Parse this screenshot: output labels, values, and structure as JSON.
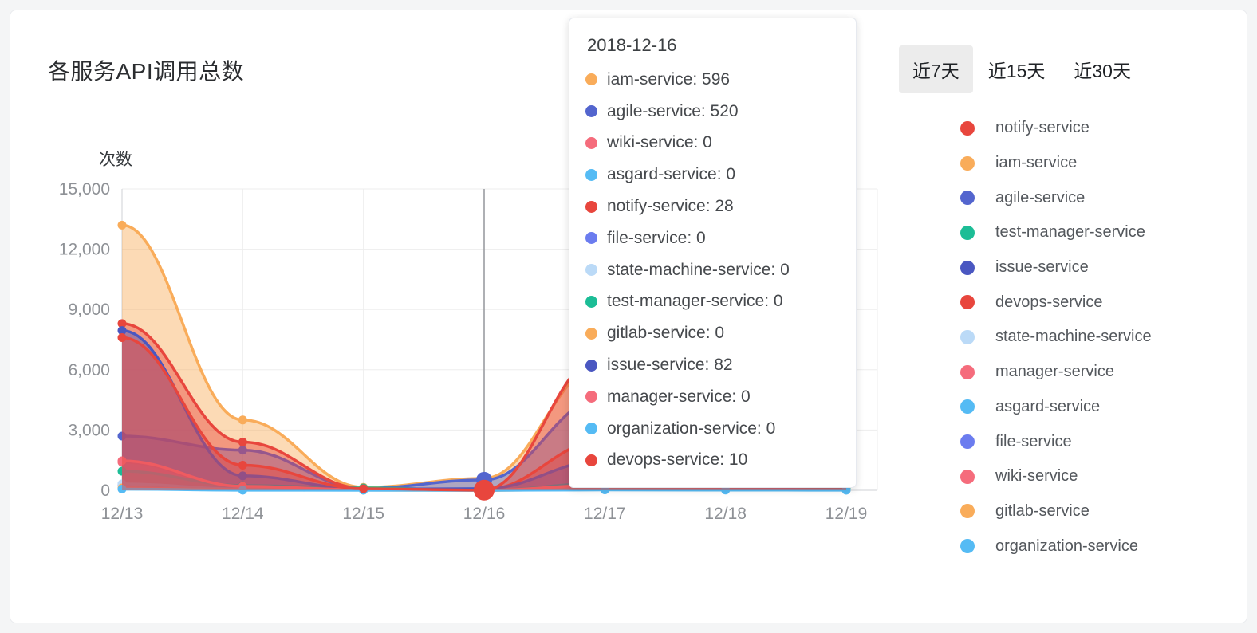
{
  "card": {
    "title": "各服务API调用总数"
  },
  "time_filter": {
    "options": [
      {
        "label": "近7天",
        "selected": true
      },
      {
        "label": "近15天",
        "selected": false
      },
      {
        "label": "近30天",
        "selected": false
      }
    ]
  },
  "legend": {
    "items": [
      {
        "name": "notify-service",
        "color": "#e8463d"
      },
      {
        "name": "iam-service",
        "color": "#f9ac5a"
      },
      {
        "name": "agile-service",
        "color": "#5365ce"
      },
      {
        "name": "test-manager-service",
        "color": "#1cbd96"
      },
      {
        "name": "issue-service",
        "color": "#4a57c1"
      },
      {
        "name": "devops-service",
        "color": "#e8463d"
      },
      {
        "name": "state-machine-service",
        "color": "#bbdaf7"
      },
      {
        "name": "manager-service",
        "color": "#f56c7c"
      },
      {
        "name": "asgard-service",
        "color": "#55bbf4"
      },
      {
        "name": "file-service",
        "color": "#6b7cef"
      },
      {
        "name": "wiki-service",
        "color": "#f56c7c"
      },
      {
        "name": "gitlab-service",
        "color": "#f9ac5a"
      },
      {
        "name": "organization-service",
        "color": "#55bbf4"
      }
    ]
  },
  "tooltip": {
    "date": "2018-12-16",
    "items": [
      {
        "name": "iam-service",
        "value": "596",
        "color": "#f9ac5a"
      },
      {
        "name": "agile-service",
        "value": "520",
        "color": "#5365ce"
      },
      {
        "name": "wiki-service",
        "value": "0",
        "color": "#f56c7c"
      },
      {
        "name": "asgard-service",
        "value": "0",
        "color": "#55bbf4"
      },
      {
        "name": "notify-service",
        "value": "28",
        "color": "#e8463d"
      },
      {
        "name": "file-service",
        "value": "0",
        "color": "#6b7cef"
      },
      {
        "name": "state-machine-service",
        "value": "0",
        "color": "#bbdaf7"
      },
      {
        "name": "test-manager-service",
        "value": "0",
        "color": "#1cbd96"
      },
      {
        "name": "gitlab-service",
        "value": "0",
        "color": "#f9ac5a"
      },
      {
        "name": "issue-service",
        "value": "82",
        "color": "#4a57c1"
      },
      {
        "name": "manager-service",
        "value": "0",
        "color": "#f56c7c"
      },
      {
        "name": "organization-service",
        "value": "0",
        "color": "#55bbf4"
      },
      {
        "name": "devops-service",
        "value": "10",
        "color": "#e8463d"
      }
    ]
  },
  "chart_data": {
    "type": "area",
    "title": "各服务API调用总数",
    "ylabel": "次数",
    "xlabel": "",
    "ylim": [
      0,
      15000
    ],
    "y_ticks": [
      0,
      3000,
      6000,
      9000,
      12000,
      15000
    ],
    "y_tick_labels": [
      "0",
      "3,000",
      "6,000",
      "9,000",
      "12,000",
      "15,000"
    ],
    "x": [
      "12/13",
      "12/14",
      "12/15",
      "12/16",
      "12/17",
      "12/18",
      "12/19"
    ],
    "grid": true,
    "smooth": true,
    "legend_position": "right",
    "highlight": {
      "x": "12/16",
      "x_index": 3,
      "axis_pointer": true,
      "emphasized_points": [
        {
          "series": "agile-service",
          "radius": 10
        },
        {
          "series": "devops-service",
          "radius": 13
        }
      ]
    },
    "series": [
      {
        "name": "iam-service",
        "color": "#f9ac5a",
        "values": [
          13200,
          3500,
          150,
          596,
          6400,
          650,
          500
        ]
      },
      {
        "name": "agile-service",
        "color": "#5365ce",
        "values": [
          2700,
          2000,
          100,
          520,
          4650,
          600,
          430
        ]
      },
      {
        "name": "wiki-service",
        "color": "#f56c7c",
        "values": [
          1400,
          180,
          20,
          0,
          200,
          150,
          60
        ]
      },
      {
        "name": "asgard-service",
        "color": "#55bbf4",
        "values": [
          80,
          10,
          5,
          0,
          30,
          20,
          10
        ]
      },
      {
        "name": "notify-service",
        "color": "#e8463d",
        "values": [
          8300,
          2400,
          100,
          28,
          2500,
          600,
          400
        ]
      },
      {
        "name": "file-service",
        "color": "#6b7cef",
        "values": [
          300,
          100,
          20,
          0,
          150,
          80,
          40
        ]
      },
      {
        "name": "state-machine-service",
        "color": "#bbdaf7",
        "values": [
          320,
          60,
          10,
          0,
          80,
          40,
          20
        ]
      },
      {
        "name": "test-manager-service",
        "color": "#1cbd96",
        "values": [
          950,
          240,
          120,
          0,
          350,
          300,
          120
        ]
      },
      {
        "name": "gitlab-service",
        "color": "#f9ac5a",
        "values": [
          120,
          30,
          10,
          0,
          50,
          30,
          15
        ]
      },
      {
        "name": "issue-service",
        "color": "#4a57c1",
        "values": [
          7950,
          720,
          60,
          82,
          1500,
          400,
          250
        ]
      },
      {
        "name": "manager-service",
        "color": "#f56c7c",
        "values": [
          1470,
          200,
          30,
          0,
          260,
          250,
          200
        ]
      },
      {
        "name": "organization-service",
        "color": "#55bbf4",
        "values": [
          60,
          5,
          5,
          0,
          20,
          10,
          5
        ]
      },
      {
        "name": "devops-service",
        "color": "#e8463d",
        "values": [
          7600,
          1250,
          80,
          10,
          6800,
          800,
          420
        ]
      }
    ]
  }
}
